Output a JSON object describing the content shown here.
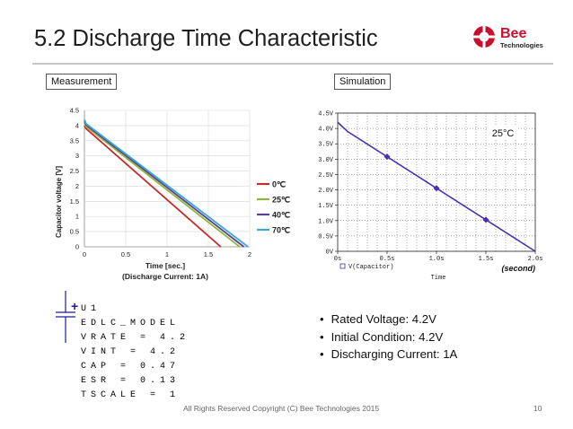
{
  "slide": {
    "title": "5.2 Discharge Time Characteristic",
    "logo_word": "Bee",
    "logo_sub": "Technologies",
    "footer": "All Rights Reserved Copyright (C) Bee Technologies 2015",
    "page": "10"
  },
  "tags": {
    "measurement": "Measurement",
    "simulation": "Simulation"
  },
  "model": {
    "polarity": "+",
    "lines": [
      "U1",
      "EDLC_MODEL",
      "VRATE = 4.2",
      "VINT = 4.2",
      "CAP = 0.47",
      "ESR = 0.13",
      "TSCALE = 1"
    ]
  },
  "bullets": [
    "Rated Voltage: 4.2V",
    "Initial Condition: 4.2V",
    "Discharging Current: 1A"
  ],
  "colors": {
    "accent": "#c8102e",
    "text": "#1f1f1f",
    "sim_line": "#4b2fb5",
    "series_0": "#c62b2b",
    "series_25": "#8fb83a",
    "series_40": "#5b3f99",
    "series_70": "#39a9d6"
  },
  "chart_data": [
    {
      "type": "line",
      "title": "",
      "xlabel": "Time [sec.]",
      "subtitle": "(Discharge Current: 1A)",
      "ylabel": "Capacitor voltage [V]",
      "xlim": [
        0,
        2
      ],
      "ylim": [
        0,
        4.5
      ],
      "xticks": [
        "0",
        "0.5",
        "1",
        "1.5",
        "2"
      ],
      "yticks": [
        "0",
        "0.5",
        "1",
        "1.5",
        "2",
        "2.5",
        "3",
        "3.5",
        "4",
        "4.5"
      ],
      "grid": true,
      "legend_position": "right",
      "series": [
        {
          "name": "0℃",
          "color": "#c62b2b",
          "x": [
            0,
            0.02,
            1.65
          ],
          "y": [
            4.0,
            3.9,
            0
          ]
        },
        {
          "name": "25℃",
          "color": "#8fb83a",
          "x": [
            0,
            0.02,
            1.88
          ],
          "y": [
            4.1,
            3.97,
            0
          ]
        },
        {
          "name": "40℃",
          "color": "#5b3f99",
          "x": [
            0,
            0.02,
            1.93
          ],
          "y": [
            4.15,
            4.02,
            0
          ]
        },
        {
          "name": "70℃",
          "color": "#39a9d6",
          "x": [
            0,
            0.02,
            1.98
          ],
          "y": [
            4.2,
            4.06,
            0
          ]
        }
      ]
    },
    {
      "type": "line",
      "title": "",
      "xlabel": "Time",
      "x_unit_note": "(second)",
      "annotation": "25°C",
      "xlim": [
        0,
        2
      ],
      "ylim": [
        0,
        4.5
      ],
      "xticks": [
        "0s",
        "0.5s",
        "1.0s",
        "1.5s",
        "2.0s"
      ],
      "yticks": [
        "0V",
        "0.5V",
        "1.0V",
        "1.5V",
        "2.0V",
        "2.5V",
        "3.0V",
        "3.5V",
        "4.0V",
        "4.5V"
      ],
      "grid": true,
      "legend_position": "bottom-left",
      "series": [
        {
          "name": "V(Capacitor)",
          "color": "#4b2fb5",
          "x": [
            0,
            0.1,
            2.0
          ],
          "y": [
            4.2,
            3.9,
            0
          ],
          "markers_x": [
            0.5,
            1.0,
            1.5
          ]
        }
      ]
    }
  ]
}
